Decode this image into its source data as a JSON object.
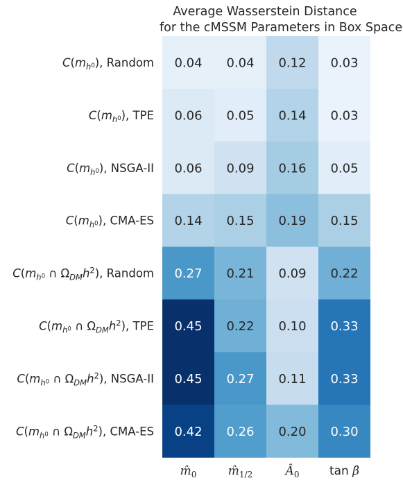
{
  "chart_data": {
    "type": "heatmap",
    "title_lines": [
      "Average Wasserstein Distance",
      "for the cMSSM Parameters in Box Space"
    ],
    "columns": [
      "m̂₀",
      "m̂₁/₂",
      "Â₀",
      "tan β̂"
    ],
    "rows": [
      {
        "quantity": "m_h0",
        "algorithm": "Random"
      },
      {
        "quantity": "m_h0",
        "algorithm": "TPE"
      },
      {
        "quantity": "m_h0",
        "algorithm": "NSGA-II"
      },
      {
        "quantity": "m_h0",
        "algorithm": "CMA-ES"
      },
      {
        "quantity": "m_h0 ∩ Ω_DM h²",
        "algorithm": "Random"
      },
      {
        "quantity": "m_h0 ∩ Ω_DM h²",
        "algorithm": "TPE"
      },
      {
        "quantity": "m_h0 ∩ Ω_DM h²",
        "algorithm": "NSGA-II"
      },
      {
        "quantity": "m_h0 ∩ Ω_DM h²",
        "algorithm": "CMA-ES"
      }
    ],
    "values": [
      [
        0.04,
        0.04,
        0.12,
        0.03
      ],
      [
        0.06,
        0.05,
        0.14,
        0.03
      ],
      [
        0.06,
        0.09,
        0.16,
        0.05
      ],
      [
        0.14,
        0.15,
        0.19,
        0.15
      ],
      [
        0.27,
        0.21,
        0.09,
        0.22
      ],
      [
        0.45,
        0.22,
        0.1,
        0.33
      ],
      [
        0.45,
        0.27,
        0.11,
        0.33
      ],
      [
        0.42,
        0.26,
        0.2,
        0.3
      ]
    ],
    "colormap": "Blues",
    "color_range": [
      0.0,
      0.45
    ],
    "colorbar": false
  }
}
